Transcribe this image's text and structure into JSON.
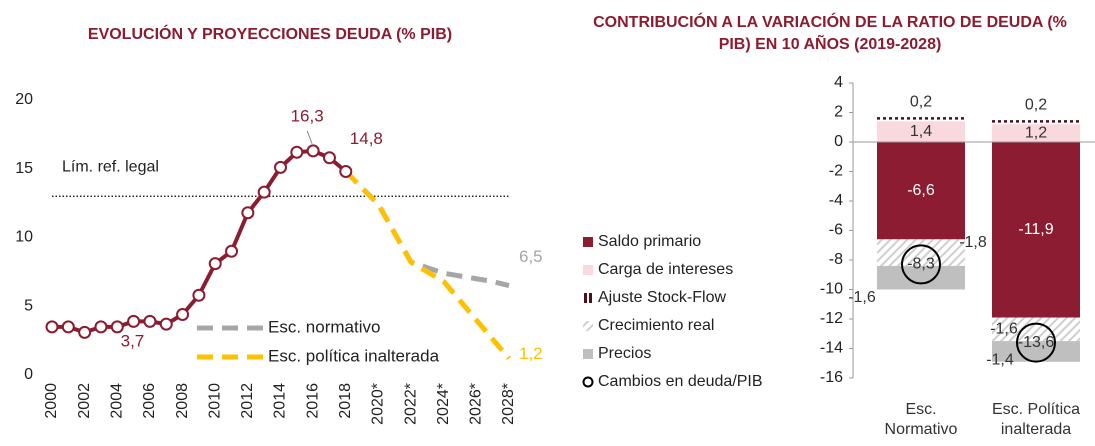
{
  "chart_data": [
    {
      "type": "line",
      "title": "EVOLUCIÓN Y PROYECCIONES DEUDA (% PIB)",
      "categories": [
        "2000",
        null,
        "2002",
        null,
        "2004",
        null,
        "2006",
        null,
        "2008",
        null,
        "2010",
        null,
        "2012",
        null,
        "2014",
        null,
        "2016",
        null,
        "2018",
        null,
        "2020*",
        null,
        "2022*",
        null,
        "2024*",
        null,
        "2026*",
        null,
        "2028*"
      ],
      "series": [
        {
          "color": "#8b1c31",
          "markers": true,
          "dashed": false,
          "values": [
            3.5,
            3.5,
            3.1,
            3.5,
            3.5,
            3.9,
            3.9,
            3.7,
            4.4,
            5.8,
            8.1,
            9.0,
            11.8,
            13.3,
            15.1,
            16.2,
            16.3,
            15.8,
            14.8,
            null,
            null,
            null,
            null,
            null,
            null,
            null,
            null,
            null,
            null
          ],
          "value_labels": [
            null,
            null,
            null,
            null,
            null,
            null,
            null,
            "3,7",
            null,
            null,
            null,
            null,
            null,
            null,
            null,
            null,
            "16,3",
            null,
            "14,8",
            null,
            null,
            null,
            null,
            null,
            null,
            null,
            null,
            null,
            null
          ]
        },
        {
          "name": "Esc. normativo",
          "color": "#a6a6a6",
          "markers": false,
          "dashed": true,
          "values": [
            null,
            null,
            null,
            null,
            null,
            null,
            null,
            null,
            null,
            null,
            null,
            null,
            null,
            null,
            null,
            null,
            null,
            null,
            14.8,
            13.6,
            12.4,
            10.3,
            8.2,
            7.8,
            7.4,
            7.2,
            7.0,
            6.8,
            6.5
          ],
          "value_labels": [
            null,
            null,
            null,
            null,
            null,
            null,
            null,
            null,
            null,
            null,
            null,
            null,
            null,
            null,
            null,
            null,
            null,
            null,
            null,
            null,
            null,
            null,
            null,
            null,
            null,
            null,
            null,
            null,
            "6,5"
          ]
        },
        {
          "name": "Esc. política inalterada",
          "color": "#ffc000",
          "markers": false,
          "dashed": true,
          "values": [
            null,
            null,
            null,
            null,
            null,
            null,
            null,
            null,
            null,
            null,
            null,
            null,
            null,
            null,
            null,
            null,
            null,
            null,
            14.8,
            13.6,
            12.4,
            10.3,
            8.2,
            7.5,
            6.8,
            5.4,
            4.0,
            2.6,
            1.2
          ],
          "value_labels": [
            null,
            null,
            null,
            null,
            null,
            null,
            null,
            null,
            null,
            null,
            null,
            null,
            null,
            null,
            null,
            null,
            null,
            null,
            null,
            null,
            null,
            null,
            null,
            null,
            null,
            null,
            null,
            null,
            "1,2"
          ]
        }
      ],
      "ref_line": {
        "value": 13,
        "label": "Lím. ref. legal"
      },
      "ylim": [
        0,
        20
      ],
      "yticks": [
        0,
        5,
        10,
        15,
        20
      ],
      "grid": false
    },
    {
      "type": "stacked_bar",
      "title": "CONTRIBUCIÓN A LA VARIACIÓN DE LA RATIO DE DEUDA (% PIB) EN 10 AÑOS (2019-2028)",
      "categories": [
        "Esc. Normativo",
        "Esc. Política inalterada"
      ],
      "series": [
        {
          "name": "Saldo primario",
          "kind": "bar",
          "color": "#8b1c31",
          "values": [
            -6.6,
            -11.9
          ],
          "value_labels": [
            "-6,6",
            "-11,9"
          ]
        },
        {
          "name": "Carga de intereses",
          "kind": "bar",
          "color": "#f9d9de",
          "values": [
            1.4,
            1.2
          ],
          "value_labels": [
            "1,4",
            "1,2"
          ]
        },
        {
          "name": "Ajuste Stock-Flow",
          "kind": "dotted",
          "color": "#4d0f1c",
          "values": [
            0.2,
            0.2
          ],
          "value_labels": [
            "0,2",
            "0,2"
          ]
        },
        {
          "name": "Crecimiento real",
          "kind": "hatch",
          "color": "#cfcfcf",
          "values": [
            -1.8,
            -1.6
          ],
          "value_labels": [
            "-1,8",
            "-1,6"
          ]
        },
        {
          "name": "Precios",
          "kind": "bar",
          "color": "#bfbfbf",
          "values": [
            -1.6,
            -1.4
          ],
          "value_labels": [
            "-1,6",
            "-1,4"
          ]
        },
        {
          "name": "Cambios en deuda/PIB",
          "kind": "circle",
          "color": "#000000",
          "values": [
            -8.3,
            -13.6
          ],
          "value_labels": [
            "-8,3",
            "-13,6"
          ]
        }
      ],
      "ylim": [
        -16,
        4
      ],
      "yticks": [
        -16,
        -14,
        -12,
        -10,
        -8,
        -6,
        -4,
        -2,
        0,
        2,
        4
      ]
    }
  ]
}
